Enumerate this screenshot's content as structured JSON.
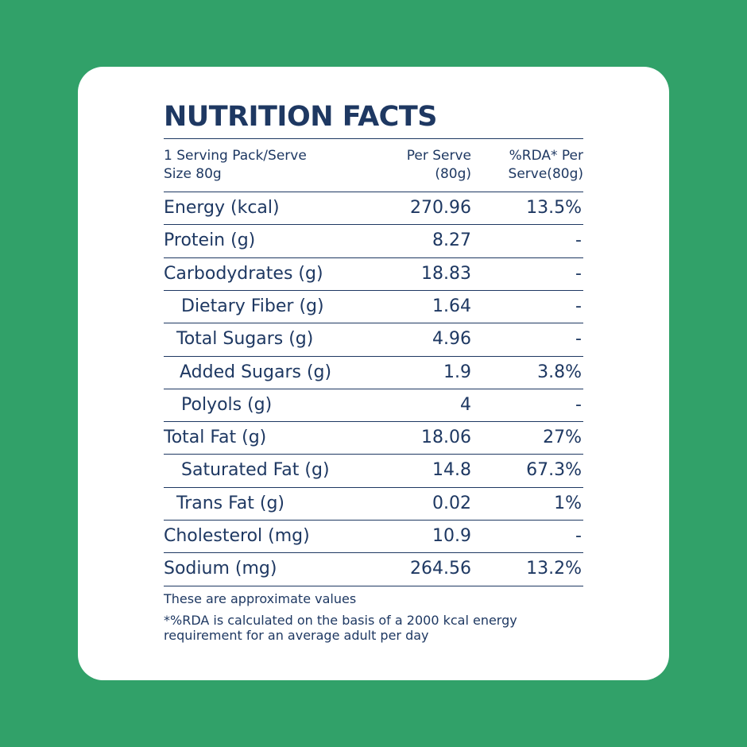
{
  "title": "NUTRITION FACTS",
  "table": {
    "header": [
      [
        "1 Serving Pack/Serve",
        "Size 80g"
      ],
      [
        "Per Serve",
        "(80g)"
      ],
      [
        "%RDA* Per",
        "Serve(80g)"
      ]
    ],
    "rows": [
      [
        "Energy (kcal)",
        "270.96",
        "13.5%"
      ],
      [
        "Protein (g)",
        "8.27",
        "-"
      ],
      [
        "Carbodydrates (g)",
        "18.83",
        "-"
      ],
      [
        "Dietary Fiber (g)",
        "1.64",
        "-"
      ],
      [
        "Total Sugars (g)",
        "4.96",
        "-"
      ],
      [
        "Added Sugars (g)",
        "1.9",
        "3.8%"
      ],
      [
        "Polyols (g)",
        "4",
        "-"
      ],
      [
        "Total Fat (g)",
        "18.06",
        "27%"
      ],
      [
        "Saturated Fat (g)",
        "14.8",
        "67.3%"
      ],
      [
        "Trans Fat (g)",
        "0.02",
        "1%"
      ],
      [
        "Cholesterol (mg)",
        "10.9",
        "-"
      ],
      [
        "Sodium (mg)",
        "264.56",
        "13.2%"
      ]
    ]
  },
  "notes": [
    "These are approximate values",
    "*%RDA is calculated on the basis of a 2000 kcal energy",
    "requirement for an average adult per day"
  ]
}
